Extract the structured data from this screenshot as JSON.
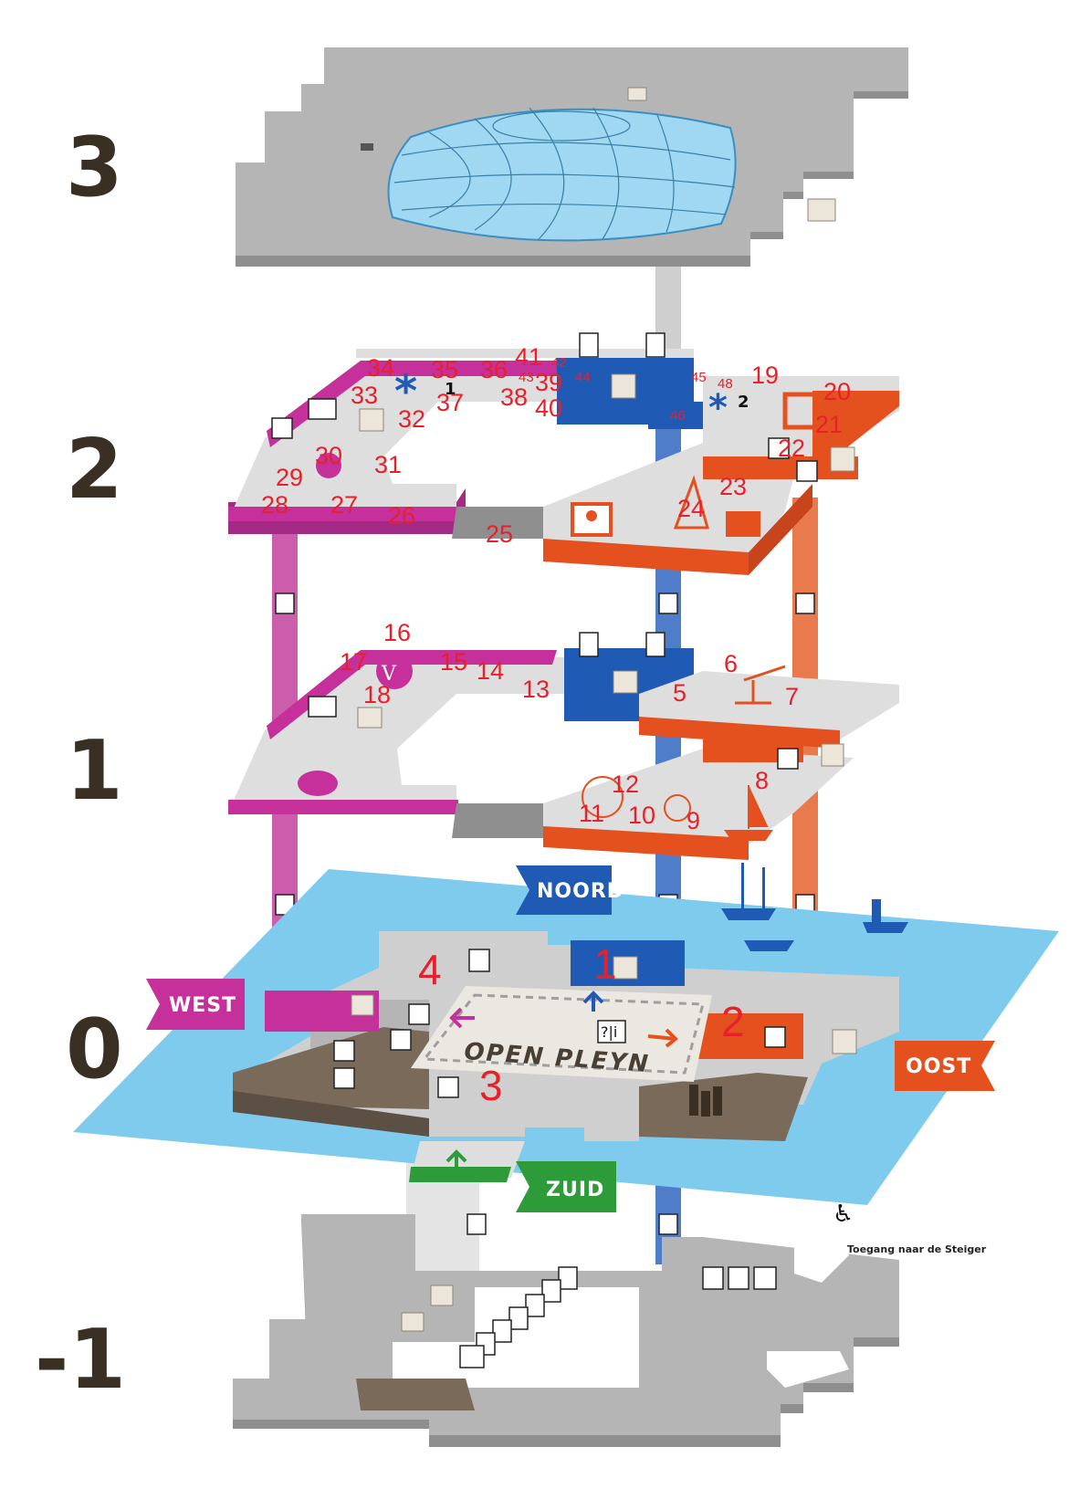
{
  "floors": [
    "3",
    "2",
    "1",
    "0",
    "-1"
  ],
  "banners": {
    "noord": "NOORD",
    "west": "WEST",
    "oost": "OOST",
    "zuid": "ZUID"
  },
  "plaza_label": "OPEN PLEYN",
  "info_desk": "?|i",
  "accessible_entrance": "Toegang naar de Steiger",
  "level2_numbers": [
    "19",
    "20",
    "21",
    "22",
    "23",
    "24",
    "25",
    "26",
    "27",
    "28",
    "29",
    "30",
    "31",
    "32",
    "33",
    "34",
    "35",
    "36",
    "37",
    "38",
    "39",
    "40",
    "41",
    "42",
    "43",
    "44",
    "45",
    "46",
    "48"
  ],
  "level2_markers": [
    "1",
    "2"
  ],
  "level1_numbers": [
    "5",
    "6",
    "7",
    "8",
    "9",
    "10",
    "11",
    "12",
    "13",
    "14",
    "15",
    "16",
    "17",
    "18"
  ],
  "level0_numbers": [
    "1",
    "2",
    "3",
    "4"
  ],
  "colors": {
    "west": "#c5309a",
    "noord": "#1f5bb5",
    "oost": "#e5501f",
    "zuid": "#2e9b3a",
    "water": "#7ecbee",
    "floor_gray": "#9e9e9e",
    "floor_light": "#dcdcdc",
    "brown": "#7a6a5a",
    "numbers": "#e8202a"
  },
  "icons": [
    "elevator-icon",
    "toilet-male-icon",
    "toilet-female-icon",
    "toilets-icon",
    "wheelchair-icon",
    "stairs-icon",
    "restaurant-icon",
    "gift-shop-icon",
    "info-icon",
    "baby-change-icon",
    "cloakroom-icon",
    "locker-icon"
  ]
}
